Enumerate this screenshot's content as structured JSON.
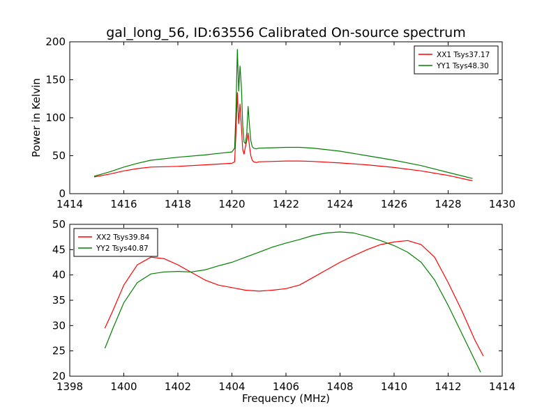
{
  "title": "gal_long_56, ID:63556 Calibrated On-source spectrum",
  "chart_data": [
    {
      "type": "line",
      "xlabel": "",
      "ylabel": "Power in Kelvin",
      "xlim": [
        1414,
        1430
      ],
      "ylim": [
        0,
        200
      ],
      "xticks": [
        "1414",
        "1416",
        "1418",
        "1420",
        "1422",
        "1424",
        "1426",
        "1428",
        "1430"
      ],
      "yticks": [
        "0",
        "50",
        "100",
        "150",
        "200"
      ],
      "legend_position": "top-right",
      "series": [
        {
          "name": "XX1 Tsys37.17",
          "color": "#ff0000",
          "x": [
            1414.9,
            1415.5,
            1416,
            1416.5,
            1417,
            1418,
            1419,
            1419.5,
            1420,
            1420.1,
            1420.15,
            1420.2,
            1420.25,
            1420.3,
            1420.35,
            1420.4,
            1420.45,
            1420.5,
            1420.55,
            1420.6,
            1420.65,
            1420.7,
            1420.75,
            1420.8,
            1420.9,
            1421,
            1421.5,
            1422,
            1422.5,
            1423,
            1424,
            1425,
            1426,
            1427,
            1428,
            1428.9
          ],
          "y": [
            22,
            26,
            30,
            33,
            35,
            36,
            38,
            39,
            40,
            42,
            80,
            133,
            92,
            118,
            88,
            58,
            52,
            62,
            70,
            80,
            62,
            50,
            44,
            42,
            41,
            42,
            42.5,
            43,
            43,
            42.5,
            40.5,
            38,
            34.5,
            30,
            24,
            17
          ]
        },
        {
          "name": "YY1 Tsys48.30",
          "color": "#008000",
          "x": [
            1414.9,
            1415.5,
            1416,
            1416.5,
            1417,
            1418,
            1419,
            1419.5,
            1420,
            1420.1,
            1420.15,
            1420.2,
            1420.25,
            1420.3,
            1420.35,
            1420.4,
            1420.45,
            1420.5,
            1420.55,
            1420.6,
            1420.65,
            1420.7,
            1420.75,
            1420.8,
            1420.9,
            1421,
            1421.5,
            1422,
            1422.5,
            1423,
            1424,
            1425,
            1426,
            1427,
            1428,
            1428.9
          ],
          "y": [
            23,
            29,
            35,
            40,
            44,
            48,
            51,
            53,
            55,
            60,
            110,
            190,
            135,
            168,
            140,
            90,
            68,
            66,
            80,
            115,
            90,
            70,
            62,
            60,
            59,
            60,
            60.5,
            61,
            61,
            60,
            56,
            50,
            44,
            37,
            28,
            20
          ]
        }
      ]
    },
    {
      "type": "line",
      "xlabel": "Frequency (MHz)",
      "ylabel": "",
      "xlim": [
        1398,
        1414
      ],
      "ylim": [
        20,
        50
      ],
      "xticks": [
        "1398",
        "1400",
        "1402",
        "1404",
        "1406",
        "1408",
        "1410",
        "1412",
        "1414"
      ],
      "yticks": [
        "20",
        "25",
        "30",
        "35",
        "40",
        "45",
        "50"
      ],
      "legend_position": "top-left",
      "series": [
        {
          "name": "XX2 Tsys39.84",
          "color": "#ff0000",
          "x": [
            1399.3,
            1399.6,
            1400,
            1400.5,
            1401,
            1401.5,
            1402,
            1402.5,
            1403,
            1403.5,
            1404,
            1404.5,
            1405,
            1405.5,
            1406,
            1406.5,
            1407,
            1407.5,
            1408,
            1408.5,
            1409,
            1409.5,
            1410,
            1410.5,
            1411,
            1411.5,
            1412,
            1412.5,
            1413,
            1413.3
          ],
          "y": [
            29.5,
            33,
            38,
            42,
            43.5,
            43.2,
            42,
            40.5,
            39,
            38,
            37.5,
            37,
            36.8,
            37,
            37.3,
            38,
            39.5,
            41,
            42.5,
            43.8,
            45,
            46,
            46.5,
            46.8,
            46,
            43.5,
            38.5,
            33,
            27,
            24
          ]
        },
        {
          "name": "YY2 Tsys40.87",
          "color": "#008000",
          "x": [
            1399.3,
            1399.6,
            1400,
            1400.5,
            1401,
            1401.5,
            1402,
            1402.5,
            1403,
            1403.5,
            1404,
            1404.5,
            1405,
            1405.5,
            1406,
            1406.5,
            1407,
            1407.5,
            1408,
            1408.5,
            1409,
            1409.5,
            1410,
            1410.5,
            1411,
            1411.5,
            1412,
            1412.5,
            1413,
            1413.2
          ],
          "y": [
            25.5,
            29.5,
            34.5,
            38.5,
            40.2,
            40.6,
            40.7,
            40.6,
            41,
            41.8,
            42.5,
            43.5,
            44.5,
            45.5,
            46.3,
            47,
            47.8,
            48.3,
            48.5,
            48.3,
            47.6,
            46.8,
            45.8,
            44.5,
            42.5,
            39,
            34,
            28.5,
            23,
            20.8
          ]
        }
      ]
    }
  ]
}
